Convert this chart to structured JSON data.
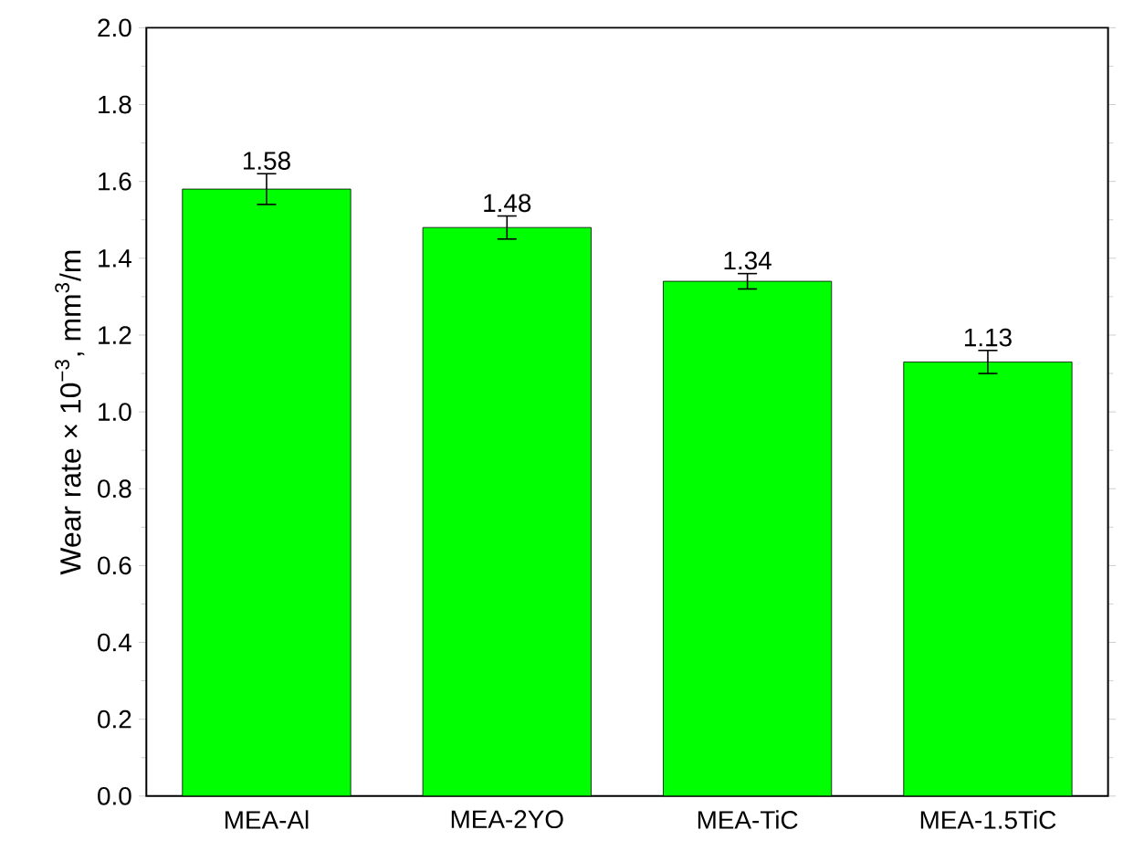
{
  "chart_data": {
    "type": "bar",
    "ylabel": "Wear rate × 10$^{−3}$, mm$^{3}$/m",
    "categories": [
      "MEA-Al",
      "MEA-2YO",
      "MEA-TiC",
      "MEA-1.5TiC"
    ],
    "values": [
      1.58,
      1.48,
      1.34,
      1.13
    ],
    "errors": [
      0.04,
      0.03,
      0.02,
      0.03
    ],
    "value_labels": [
      "1.58",
      "1.48",
      "1.34",
      "1.13"
    ],
    "color": "#00ff00",
    "ylim": [
      0,
      2.0
    ],
    "yticks": [
      {
        "value": 0,
        "label": "0.0"
      },
      {
        "value": 0.2,
        "label": "0.2"
      },
      {
        "value": 0.4,
        "label": "0.4"
      },
      {
        "value": 0.6,
        "label": "0.6"
      },
      {
        "value": 0.8,
        "label": "0.8"
      },
      {
        "value": 1.0,
        "label": "1.0"
      },
      {
        "value": 1.2,
        "label": "1.2"
      },
      {
        "value": 1.4,
        "label": "1.4"
      },
      {
        "value": 1.6,
        "label": "1.6"
      },
      {
        "value": 1.8,
        "label": "1.8"
      },
      {
        "value": 2.0,
        "label": "2.0"
      }
    ],
    "grid": false
  }
}
